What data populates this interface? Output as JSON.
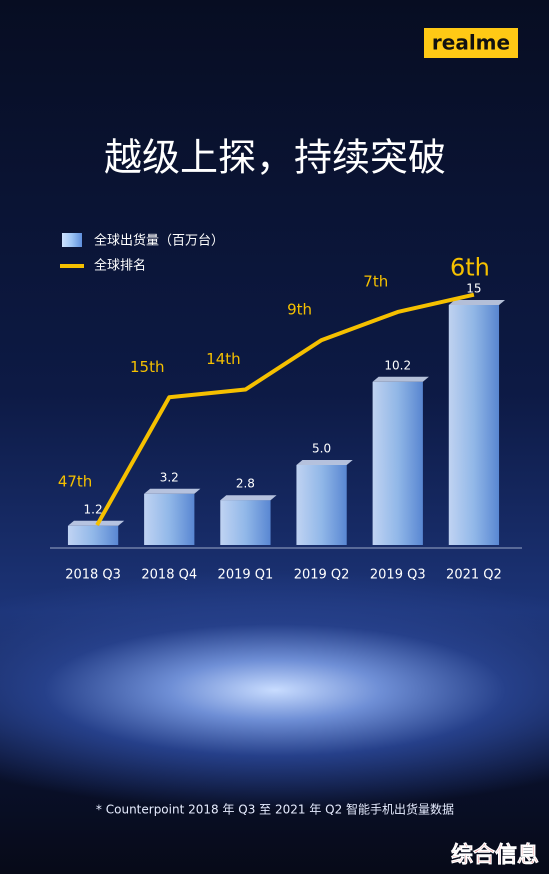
{
  "brand": "realme",
  "chart_data": {
    "type": "bar",
    "title": "越级上探，持续突破",
    "categories": [
      "2018 Q3",
      "2018 Q4",
      "2019 Q1",
      "2019 Q2",
      "2019 Q3",
      "2021 Q2"
    ],
    "series": [
      {
        "name": "全球出货量（百万台）",
        "type": "bar",
        "color": "#9cc4f4",
        "values": [
          1.2,
          3.2,
          2.8,
          5,
          10.2,
          15
        ],
        "value_labels": [
          "1.2",
          "3.2",
          "2.8",
          "5.0",
          "10.2",
          "15"
        ]
      },
      {
        "name": "全球排名",
        "type": "line",
        "axis": "y2",
        "color": "#f5c000",
        "values": [
          47,
          15,
          14,
          9,
          7,
          6
        ],
        "value_labels": [
          "47th",
          "15th",
          "14th",
          "9th",
          "7th",
          "6th"
        ]
      }
    ],
    "ylim": [
      0,
      15
    ],
    "y2lim": [
      50,
      5.5
    ],
    "y2log": true,
    "legend": "top-left"
  },
  "footnote": "* Counterpoint 2018 年 Q3 至 2021 年 Q2 智能手机出货量数据",
  "watermark": "综合信息"
}
